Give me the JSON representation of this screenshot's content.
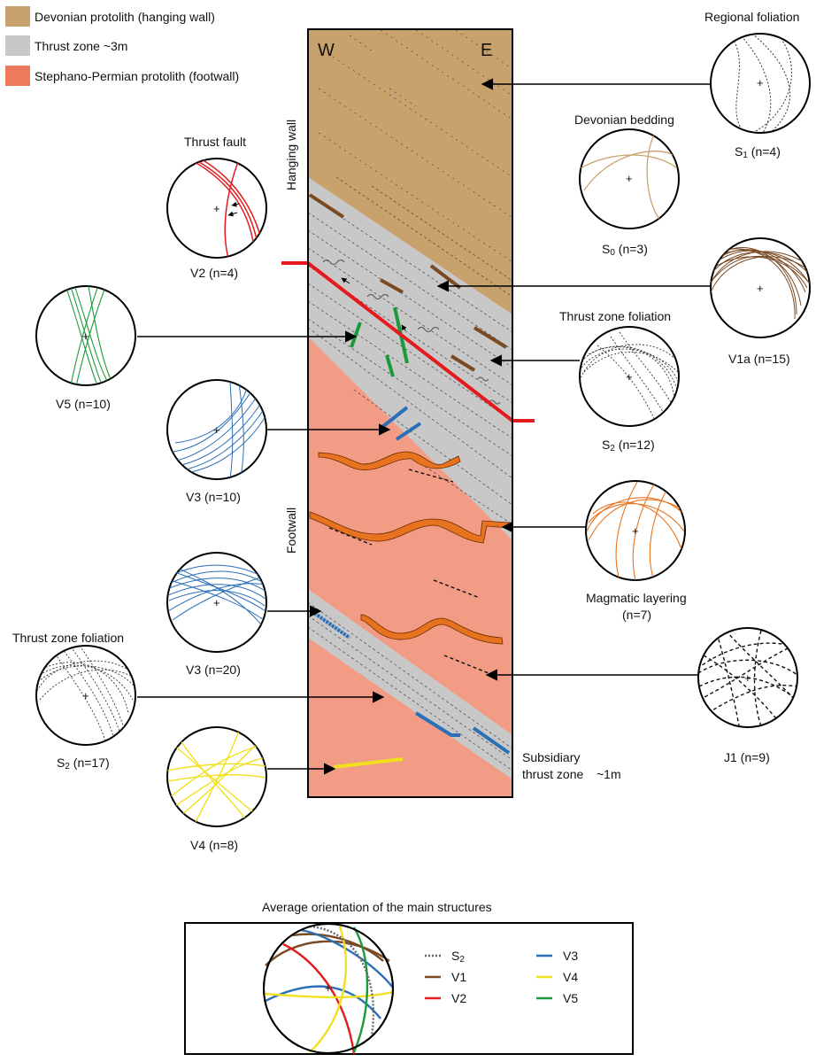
{
  "legend": {
    "items": [
      {
        "label": "Devonian protolith (hanging wall)",
        "color": "#c8a26d"
      },
      {
        "label": "Thrust zone ~3m",
        "color": "#c8c8c8"
      },
      {
        "label": "Stephano-Permian protolith (footwall)",
        "color": "#ee7a5e"
      }
    ]
  },
  "section": {
    "west_label": "W",
    "east_label": "E",
    "hanging_wall_label": "Hanging wall",
    "footwall_label": "Footwall",
    "subsidiary_label_1": "Subsidiary",
    "subsidiary_label_2": "thrust zone",
    "subsidiary_thickness": "~1m",
    "colors": {
      "hanging_wall": "#c8a26d",
      "thrust_zone": "#c8c8c8",
      "footwall": "#f29c86",
      "thrust_fault": "#e41a1c",
      "v1": "#7a4a22",
      "v3": "#2a6fb8",
      "v4": "#f0e020",
      "v5": "#1a9a3a",
      "magmatic": "#e8731e"
    }
  },
  "stereonets": {
    "regional_foliation": {
      "title": "Regional foliation",
      "label_main": "S",
      "label_sub": "1",
      "label_rest": " (n=4)"
    },
    "devonian_bedding": {
      "title": "Devonian bedding",
      "label_main": "S",
      "label_sub": "0",
      "label_rest": " (n=3)"
    },
    "v1a": {
      "label": "V1a (n=15)"
    },
    "thrust_zone_foliation_top": {
      "title": "Thrust zone foliation",
      "label_main": "S",
      "label_sub": "2",
      "label_rest": " (n=12)"
    },
    "magmatic_layering": {
      "title_1": "Magmatic layering",
      "title_2": "(n=7)"
    },
    "j1": {
      "label": "J1 (n=9)"
    },
    "thrust_fault": {
      "title": "Thrust fault",
      "label": "V2 (n=4)"
    },
    "v5": {
      "label": "V5 (n=10)"
    },
    "v3_a": {
      "label": "V3 (n=10)"
    },
    "v3_b": {
      "label": "V3 (n=20)"
    },
    "thrust_zone_foliation_bottom": {
      "title": "Thrust zone foliation",
      "label_main": "S",
      "label_sub": "2",
      "label_rest": " (n=17)"
    },
    "v4": {
      "label": "V4 (n=8)"
    }
  },
  "average": {
    "title": "Average orientation of the main structures",
    "legend": [
      {
        "main": "S",
        "sub": "2",
        "color": "#666666",
        "style": "dotted"
      },
      {
        "main": "V1",
        "sub": "",
        "color": "#7a4a22",
        "style": "solid"
      },
      {
        "main": "V2",
        "sub": "",
        "color": "#e41a1c",
        "style": "solid"
      },
      {
        "main": "V3",
        "sub": "",
        "color": "#2a6fb8",
        "style": "solid"
      },
      {
        "main": "V4",
        "sub": "",
        "color": "#f0e020",
        "style": "solid"
      },
      {
        "main": "V5",
        "sub": "",
        "color": "#1a9a3a",
        "style": "solid"
      }
    ]
  }
}
